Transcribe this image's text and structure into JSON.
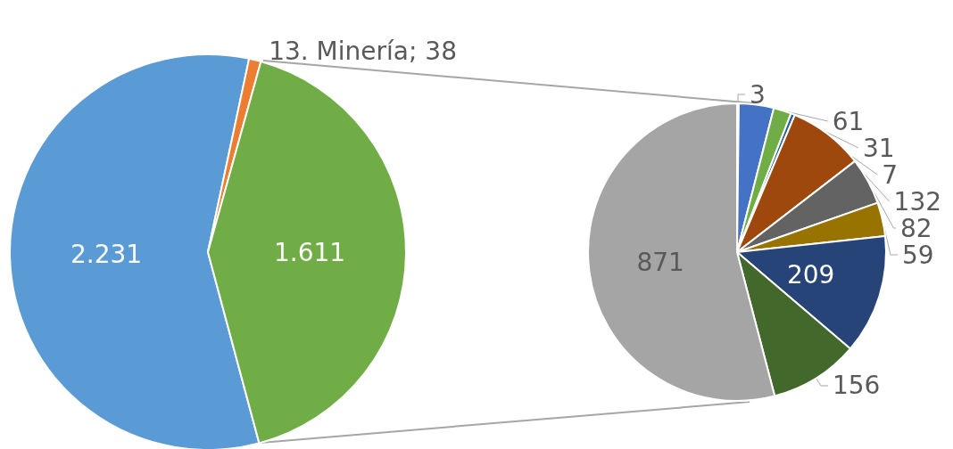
{
  "chart_data": [
    {
      "type": "pie",
      "categories": [
        null,
        "13. Minería",
        null
      ],
      "values": [
        2231,
        38,
        1611
      ],
      "value_labels": [
        "2.231",
        "38",
        "1.611"
      ],
      "colors": [
        "#5b9bd5",
        "#ed7d31",
        "#70ad47"
      ],
      "legend": false
    },
    {
      "type": "pie",
      "categories": [
        null,
        null,
        null,
        null,
        null,
        null,
        null,
        null,
        null,
        null
      ],
      "values": [
        3,
        61,
        31,
        7,
        132,
        82,
        59,
        209,
        156,
        871
      ],
      "data_labels": true,
      "colors": [
        "#ffc000",
        "#4472c4",
        "#70ad47",
        "#255e91",
        "#9e480e",
        "#636363",
        "#997300",
        "#264478",
        "#43682b",
        "#a5a5a5"
      ],
      "legend": false
    }
  ]
}
